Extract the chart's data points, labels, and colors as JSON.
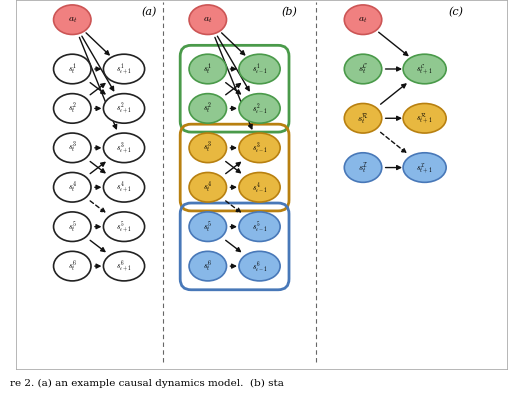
{
  "fig_width": 5.24,
  "fig_height": 4.2,
  "dpi": 100,
  "bg_color": "#ffffff",
  "panel_a_label": "(a)",
  "panel_b_label": "(b)",
  "panel_c_label": "(c)",
  "action_color": "#f08080",
  "action_edge_color": "#cc5555",
  "white_node_color": "#ffffff",
  "white_node_edge": "#222222",
  "green_node_color": "#90c890",
  "green_node_edge": "#4a9a4a",
  "orange_node_color": "#e8b840",
  "orange_node_edge": "#b88010",
  "blue_node_color": "#88b8e8",
  "blue_node_edge": "#4878b8",
  "green_box_color": "#4a9a4a",
  "orange_box_color": "#b88010",
  "blue_box_color": "#4878b8",
  "arrow_color": "#111111",
  "sep_line_color": "#666666",
  "caption": "re 2. (a) an example causal dynamics model.  (b) sta"
}
